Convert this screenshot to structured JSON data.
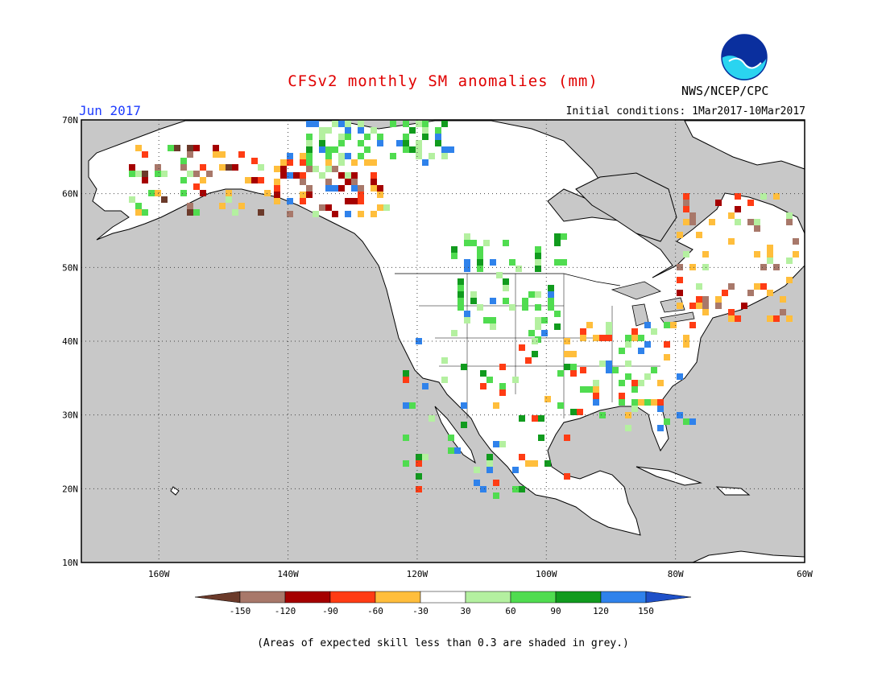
{
  "title": "CFSv2 monthly SM anomalies (mm)",
  "month": "Jun 2017",
  "initial_conditions": "Initial conditions: 1Mar2017-10Mar2017",
  "agency": "NWS/NCEP/CPC",
  "logo_text": "NOAA",
  "footnote": "(Areas of expected skill less than 0.3 are shaded in grey.)",
  "map": {
    "lon_ticks": [
      "160W",
      "140W",
      "120W",
      "100W",
      "80W",
      "60W"
    ],
    "lat_ticks": [
      "70N",
      "60N",
      "50N",
      "40N",
      "30N",
      "20N",
      "10N"
    ],
    "lon_range": [
      -172,
      -60
    ],
    "lat_range": [
      10,
      70
    ],
    "ocean_color": "#c8c8c8",
    "land_color": "#ffffff",
    "grid_lines": "dotted"
  },
  "legend": {
    "labels": [
      "-150",
      "-120",
      "-90",
      "-60",
      "-30",
      "30",
      "60",
      "90",
      "120",
      "150"
    ],
    "colors": [
      "#6b3a2a",
      "#a8786a",
      "#a50000",
      "#ff3c14",
      "#ffbe3c",
      "#ffffff",
      "#b4f0a0",
      "#50dc50",
      "#119b1e",
      "#2f82eb",
      "#1e50c8"
    ]
  }
}
